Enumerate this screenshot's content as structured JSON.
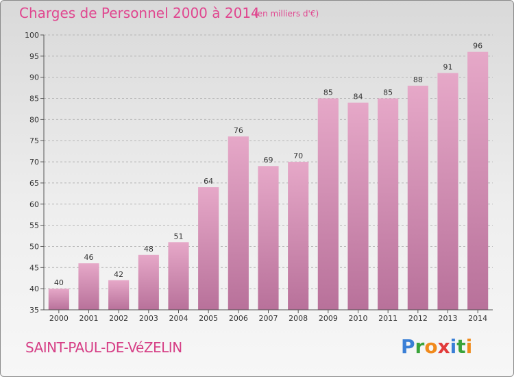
{
  "header": {
    "title": "Charges de Personnel 2000 à 2014",
    "subtitle": "(en milliers d'€)"
  },
  "footer": {
    "place": "SAINT-PAUL-DE-VéZELIN",
    "logo_letters": [
      {
        "char": "P",
        "color": "#3a7fd6"
      },
      {
        "char": "r",
        "color": "#3aa33a"
      },
      {
        "char": "o",
        "color": "#f08a1c"
      },
      {
        "char": "x",
        "color": "#e23b3b"
      },
      {
        "char": "i",
        "color": "#3a7fd6"
      },
      {
        "char": "t",
        "color": "#3aa33a"
      },
      {
        "char": "i",
        "color": "#f08a1c"
      }
    ]
  },
  "chart_data": {
    "type": "bar",
    "categories": [
      "2000",
      "2001",
      "2002",
      "2003",
      "2004",
      "2005",
      "2006",
      "2007",
      "2008",
      "2009",
      "2010",
      "2011",
      "2012",
      "2013",
      "2014"
    ],
    "values": [
      40,
      46,
      42,
      48,
      51,
      64,
      76,
      69,
      70,
      85,
      84,
      85,
      88,
      91,
      96
    ],
    "title": "Charges de Personnel 2000 à 2014",
    "ylim": [
      35,
      100
    ],
    "yticks": [
      35,
      40,
      45,
      50,
      55,
      60,
      65,
      70,
      75,
      80,
      85,
      90,
      95,
      100
    ],
    "grid": "horizontal-dashed",
    "bar_color": "#d98aae"
  }
}
